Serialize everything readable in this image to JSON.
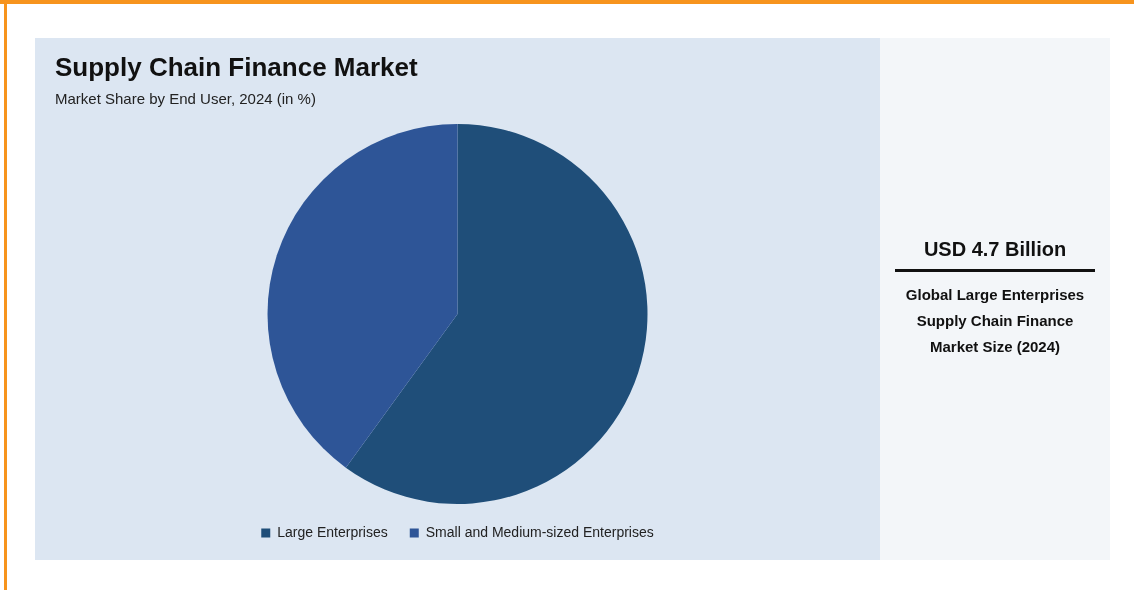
{
  "chart_data": {
    "type": "pie",
    "title": "Supply Chain Finance Market",
    "subtitle": "Market Share by End User, 2024 (in %)",
    "categories": [
      "Large Enterprises",
      "Small and Medium-sized Enterprises"
    ],
    "values": [
      60,
      40
    ],
    "colors": [
      "#1f4e79",
      "#2e5597"
    ],
    "legend": "bottom",
    "annotations": [
      "USD 4.7 Billion",
      "Global Large Enterprises Supply Chain Finance Market Size (2024)"
    ]
  }
}
